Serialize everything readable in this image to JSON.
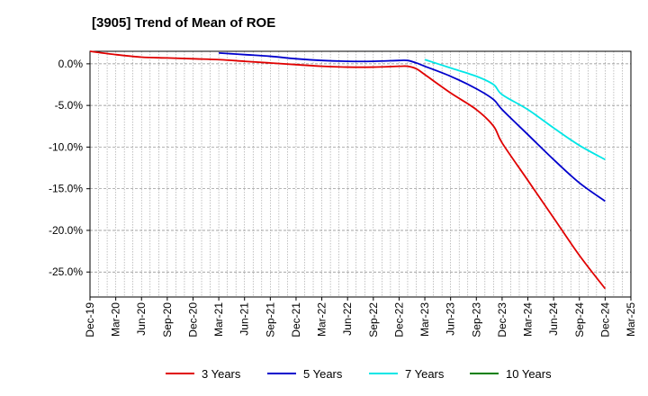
{
  "chart_data": {
    "type": "line",
    "title": "[3905]  Trend of Mean of ROE",
    "xlabel": "",
    "ylabel": "",
    "ylim": [
      -28,
      1.5
    ],
    "y_ticks": [
      0,
      -5,
      -10,
      -15,
      -20,
      -25
    ],
    "y_tick_labels": [
      "0.0%",
      "-5.0%",
      "-10.0%",
      "-15.0%",
      "-20.0%",
      "-25.0%"
    ],
    "x_tick_labels": [
      "Dec-19",
      "Mar-20",
      "Jun-20",
      "Sep-20",
      "Dec-20",
      "Mar-21",
      "Jun-21",
      "Sep-21",
      "Dec-21",
      "Mar-22",
      "Jun-22",
      "Sep-22",
      "Dec-22",
      "Mar-23",
      "Jun-23",
      "Sep-23",
      "Dec-23",
      "Mar-24",
      "Jun-24",
      "Sep-24",
      "Dec-24",
      "Mar-25"
    ],
    "grid": true,
    "legend_position": "bottom",
    "series": [
      {
        "name": "3 Years",
        "color": "#e00000",
        "points": [
          [
            0,
            1.5
          ],
          [
            1,
            1.1
          ],
          [
            2,
            0.8
          ],
          [
            3,
            0.7
          ],
          [
            4,
            0.6
          ],
          [
            5,
            0.5
          ],
          [
            6,
            0.3
          ],
          [
            7,
            0.1
          ],
          [
            8,
            -0.1
          ],
          [
            9,
            -0.3
          ],
          [
            10,
            -0.4
          ],
          [
            11,
            -0.4
          ],
          [
            12,
            -0.3
          ],
          [
            12.33,
            -0.3
          ],
          [
            12.67,
            -0.6
          ],
          [
            13,
            -1.3
          ],
          [
            14,
            -3.5
          ],
          [
            15,
            -5.5
          ],
          [
            15.67,
            -7.5
          ],
          [
            16,
            -9.5
          ],
          [
            17,
            -14.0
          ],
          [
            18,
            -18.5
          ],
          [
            19,
            -23.0
          ],
          [
            20,
            -27.0
          ]
        ]
      },
      {
        "name": "5 Years",
        "color": "#0000cc",
        "points": [
          [
            5,
            1.3
          ],
          [
            6,
            1.1
          ],
          [
            7,
            0.9
          ],
          [
            8,
            0.6
          ],
          [
            9,
            0.4
          ],
          [
            10,
            0.3
          ],
          [
            11,
            0.3
          ],
          [
            12,
            0.4
          ],
          [
            12.33,
            0.4
          ],
          [
            12.67,
            0.1
          ],
          [
            13,
            -0.3
          ],
          [
            14,
            -1.5
          ],
          [
            15,
            -3.0
          ],
          [
            15.67,
            -4.3
          ],
          [
            16,
            -5.5
          ],
          [
            17,
            -8.5
          ],
          [
            18,
            -11.5
          ],
          [
            19,
            -14.3
          ],
          [
            20,
            -16.5
          ]
        ]
      },
      {
        "name": "7 Years",
        "color": "#00e6e6",
        "points": [
          [
            13,
            0.5
          ],
          [
            14,
            -0.5
          ],
          [
            15,
            -1.5
          ],
          [
            15.67,
            -2.5
          ],
          [
            16,
            -3.7
          ],
          [
            17,
            -5.5
          ],
          [
            18,
            -7.7
          ],
          [
            19,
            -9.8
          ],
          [
            20,
            -11.5
          ]
        ]
      },
      {
        "name": "10 Years",
        "color": "#008000",
        "points": []
      }
    ]
  }
}
